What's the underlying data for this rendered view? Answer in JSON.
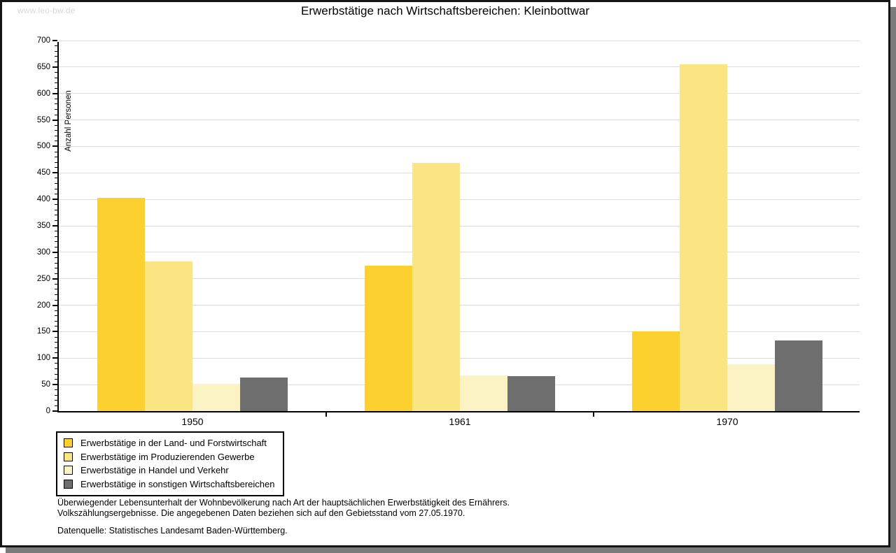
{
  "watermark": "www.leo-bw.de",
  "title": "Erwerbstätige nach Wirtschaftsbereichen: Kleinbottwar",
  "chart_data": {
    "type": "bar",
    "title": "Erwerbstätige nach Wirtschaftsbereichen: Kleinbottwar",
    "xlabel": "",
    "ylabel": "Anzahl Personen",
    "ylim": [
      0,
      700
    ],
    "ytick_step": 50,
    "yminor_step": 10,
    "grid": true,
    "legend_position": "bottom-left",
    "categories": [
      "1950",
      "1961",
      "1970"
    ],
    "series": [
      {
        "name": "Erwerbstätige in der Land- und Forstwirtschaft",
        "color": "#fcd02e",
        "values": [
          403,
          275,
          150
        ]
      },
      {
        "name": "Erwerbstätige im Produzierenden Gewerbe",
        "color": "#fae582",
        "values": [
          283,
          469,
          655
        ]
      },
      {
        "name": "Erwerbstätige in Handel und Verkehr",
        "color": "#fcf3c5",
        "values": [
          52,
          68,
          88
        ]
      },
      {
        "name": "Erwerbstätige in sonstigen Wirtschaftsbereichen",
        "color": "#6e6e6e",
        "values": [
          64,
          66,
          134
        ]
      }
    ]
  },
  "footnotes": {
    "line1": "Überwiegender Lebensunterhalt der Wohnbevölkerung nach Art der hauptsächlichen Erwerbstätigkeit des Ernährers.",
    "line2": "Volkszählungsergebnisse. Die angegebenen Daten beziehen sich auf den Gebietsstand vom 27.05.1970.",
    "source": "Datenquelle: Statistisches Landesamt Baden-Württemberg."
  },
  "colors": {
    "grid": "#dcdcdc",
    "axis": "#000000",
    "frame_shadow": "#7b7b7b",
    "watermark_text": "#d9d9d9"
  }
}
